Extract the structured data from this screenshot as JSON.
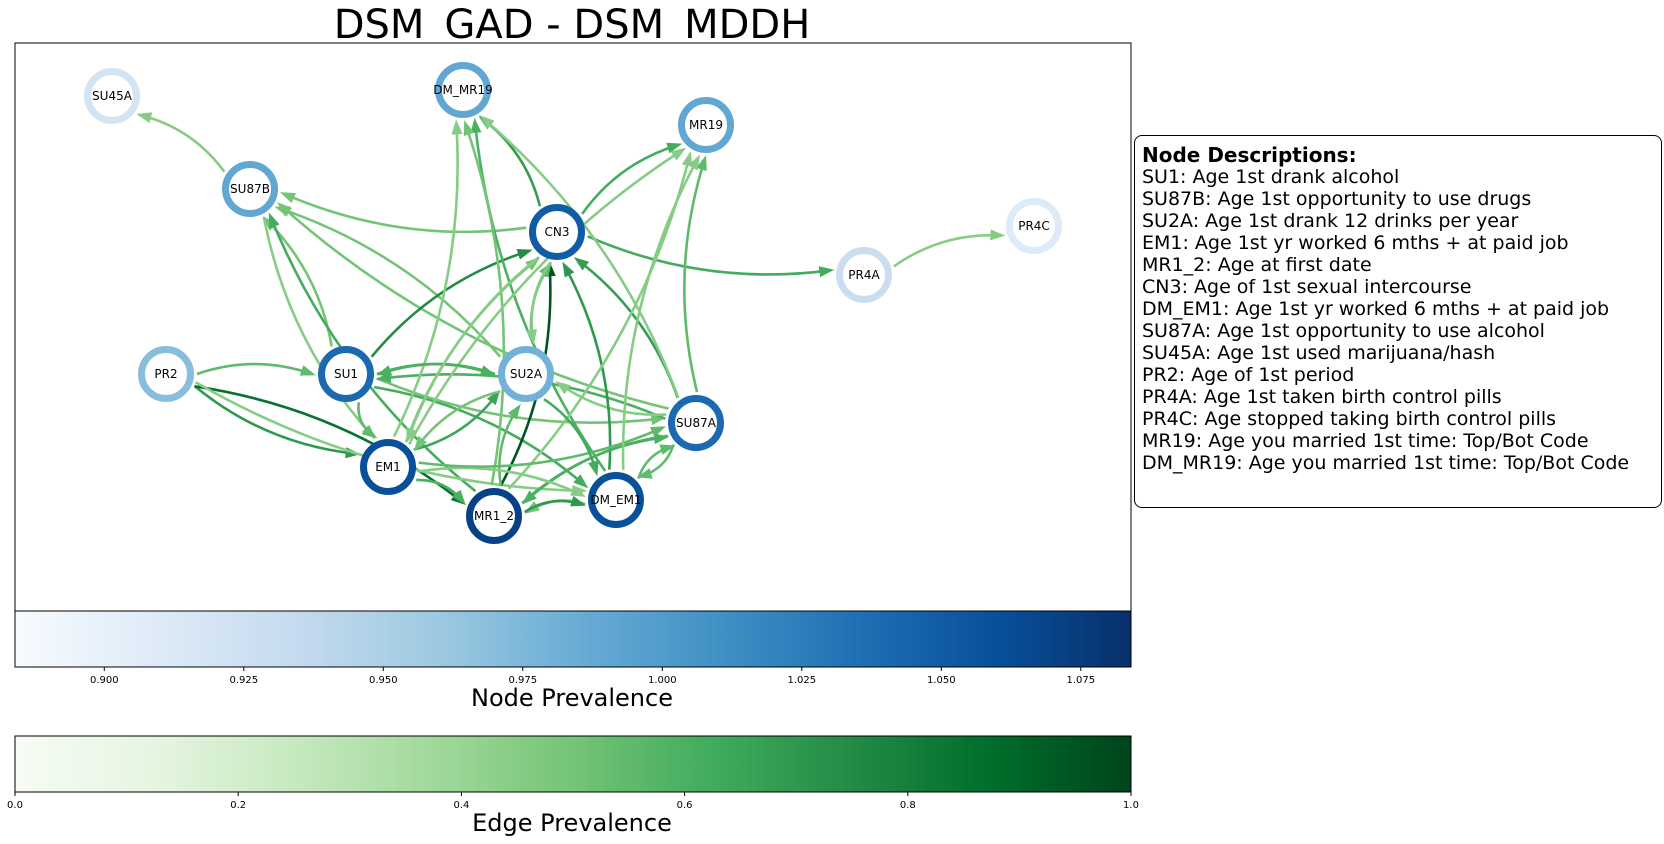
{
  "title": "DSM_GAD - DSM_MDDH",
  "legend": {
    "title": "Node Descriptions:",
    "items": [
      "SU1: Age 1st drank alcohol",
      "SU87B: Age 1st opportunity to use drugs",
      "SU2A: Age 1st drank 12 drinks per year",
      "EM1: Age 1st yr worked 6 mths + at paid job",
      "MR1_2: Age at first date",
      "CN3: Age of 1st sexual intercourse",
      "DM_EM1: Age 1st yr worked 6 mths + at paid job",
      "SU87A: Age 1st opportunity to use alcohol",
      "SU45A: Age 1st used marijuana/hash",
      "PR2: Age of 1st period",
      "PR4A: Age 1st taken birth control pills",
      "PR4C: Age stopped taking birth control pills",
      "MR19: Age you married 1st time: Top/Bot Code",
      "DM_MR19: Age you married 1st time: Top/Bot Code"
    ]
  },
  "node_colorbar": {
    "label": "Node Prevalence",
    "colormap": "Blues",
    "range": [
      0.884,
      1.084
    ],
    "ticks": [
      "0.900",
      "0.925",
      "0.950",
      "0.975",
      "1.000",
      "1.025",
      "1.050",
      "1.075"
    ],
    "tick_values": [
      0.9,
      0.925,
      0.95,
      0.975,
      1.0,
      1.025,
      1.05,
      1.075
    ]
  },
  "edge_colorbar": {
    "label": "Edge Prevalence",
    "colormap": "Greens",
    "range": [
      0.0,
      1.0
    ],
    "ticks": [
      "0.0",
      "0.2",
      "0.4",
      "0.6",
      "0.8",
      "1.0"
    ],
    "tick_values": [
      0.0,
      0.2,
      0.4,
      0.6,
      0.8,
      1.0
    ]
  },
  "graph": {
    "nodes": [
      {
        "id": "SU45A",
        "label": "SU45A",
        "prevalence": 0.92
      },
      {
        "id": "DM_MR19",
        "label": "DM_MR19",
        "prevalence": 0.99
      },
      {
        "id": "MR19",
        "label": "MR19",
        "prevalence": 0.99
      },
      {
        "id": "SU87B",
        "label": "SU87B",
        "prevalence": 0.99
      },
      {
        "id": "CN3",
        "label": "CN3",
        "prevalence": 1.05
      },
      {
        "id": "PR4C",
        "label": "PR4C",
        "prevalence": 0.91
      },
      {
        "id": "PR4A",
        "label": "PR4A",
        "prevalence": 0.93
      },
      {
        "id": "PR2",
        "label": "PR2",
        "prevalence": 0.97
      },
      {
        "id": "SU1",
        "label": "SU1",
        "prevalence": 1.04
      },
      {
        "id": "SU2A",
        "label": "SU2A",
        "prevalence": 0.98
      },
      {
        "id": "SU87A",
        "label": "SU87A",
        "prevalence": 1.04
      },
      {
        "id": "EM1",
        "label": "EM1",
        "prevalence": 1.06
      },
      {
        "id": "DM_EM1",
        "label": "DM_EM1",
        "prevalence": 1.06
      },
      {
        "id": "MR1_2",
        "label": "MR1_2",
        "prevalence": 1.07
      }
    ],
    "edges": [
      {
        "source": "SU87B",
        "target": "SU45A",
        "prevalence": 0.45
      },
      {
        "source": "PR4A",
        "target": "PR4C",
        "prevalence": 0.45
      },
      {
        "source": "CN3",
        "target": "PR4A",
        "prevalence": 0.62
      },
      {
        "source": "CN3",
        "target": "MR19",
        "prevalence": 0.62
      },
      {
        "source": "CN3",
        "target": "DM_MR19",
        "prevalence": 0.68
      },
      {
        "source": "CN3",
        "target": "SU87B",
        "prevalence": 0.5
      },
      {
        "source": "SU2A",
        "target": "SU87B",
        "prevalence": 0.5
      },
      {
        "source": "SU87A",
        "target": "SU87B",
        "prevalence": 0.5
      },
      {
        "source": "SU1",
        "target": "SU87B",
        "prevalence": 0.5
      },
      {
        "source": "MR1_2",
        "target": "SU87B",
        "prevalence": 0.62
      },
      {
        "source": "SU87B",
        "target": "EM1",
        "prevalence": 0.45
      },
      {
        "source": "PR2",
        "target": "SU1",
        "prevalence": 0.55
      },
      {
        "source": "PR2",
        "target": "EM1",
        "prevalence": 0.7
      },
      {
        "source": "PR2",
        "target": "MR1_2",
        "prevalence": 0.85
      },
      {
        "source": "PR2",
        "target": "DM_EM1",
        "prevalence": 0.45
      },
      {
        "source": "SU1",
        "target": "SU2A",
        "prevalence": 0.6
      },
      {
        "source": "SU1",
        "target": "EM1",
        "prevalence": 0.55
      },
      {
        "source": "SU1",
        "target": "DM_EM1",
        "prevalence": 0.62
      },
      {
        "source": "SU1",
        "target": "SU87A",
        "prevalence": 0.5
      },
      {
        "source": "SU1",
        "target": "CN3",
        "prevalence": 0.75
      },
      {
        "source": "SU87A",
        "target": "SU1",
        "prevalence": 0.6
      },
      {
        "source": "SU87A",
        "target": "SU2A",
        "prevalence": 0.45
      },
      {
        "source": "SU87A",
        "target": "CN3",
        "prevalence": 0.68
      },
      {
        "source": "SU87A",
        "target": "MR19",
        "prevalence": 0.55
      },
      {
        "source": "SU87A",
        "target": "MR1_2",
        "prevalence": 0.6
      },
      {
        "source": "DM_EM1",
        "target": "SU87A",
        "prevalence": 0.55
      },
      {
        "source": "DM_EM1",
        "target": "CN3",
        "prevalence": 0.7
      },
      {
        "source": "DM_EM1",
        "target": "DM_MR19",
        "prevalence": 0.6
      },
      {
        "source": "DM_EM1",
        "target": "MR1_2",
        "prevalence": 0.5
      },
      {
        "source": "MR1_2",
        "target": "DM_EM1",
        "prevalence": 0.7
      },
      {
        "source": "MR1_2",
        "target": "CN3",
        "prevalence": 0.95
      },
      {
        "source": "MR1_2",
        "target": "SU87A",
        "prevalence": 0.6
      },
      {
        "source": "MR1_2",
        "target": "MR19",
        "prevalence": 0.45
      },
      {
        "source": "MR1_2",
        "target": "SU2A",
        "prevalence": 0.55
      },
      {
        "source": "MR1_2",
        "target": "DM_MR19",
        "prevalence": 0.5
      },
      {
        "source": "EM1",
        "target": "MR1_2",
        "prevalence": 0.6
      },
      {
        "source": "EM1",
        "target": "SU2A",
        "prevalence": 0.65
      },
      {
        "source": "EM1",
        "target": "DM_EM1",
        "prevalence": 0.45
      },
      {
        "source": "EM1",
        "target": "DM_MR19",
        "prevalence": 0.45
      },
      {
        "source": "EM1",
        "target": "CN3",
        "prevalence": 0.5
      },
      {
        "source": "EM1",
        "target": "SU87A",
        "prevalence": 0.55
      },
      {
        "source": "EM1",
        "target": "MR19",
        "prevalence": 0.45
      },
      {
        "source": "SU2A",
        "target": "EM1",
        "prevalence": 0.5
      },
      {
        "source": "SU2A",
        "target": "CN3",
        "prevalence": 0.55
      },
      {
        "source": "CN3",
        "target": "SU2A",
        "prevalence": 0.45
      },
      {
        "source": "SU2A",
        "target": "DM_EM1",
        "prevalence": 0.62
      },
      {
        "source": "SU2A",
        "target": "SU1",
        "prevalence": 0.6
      },
      {
        "source": "SU87A",
        "target": "DM_EM1",
        "prevalence": 0.55
      },
      {
        "source": "CN3",
        "target": "EM1",
        "prevalence": 0.45
      },
      {
        "source": "DM_EM1",
        "target": "MR19",
        "prevalence": 0.45
      },
      {
        "source": "SU87A",
        "target": "DM_MR19",
        "prevalence": 0.45
      }
    ]
  }
}
